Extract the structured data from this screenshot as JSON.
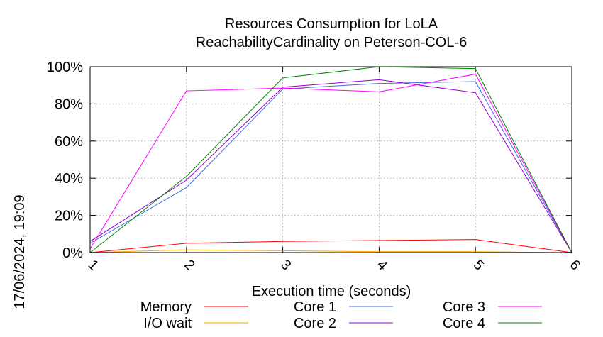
{
  "chart_data": {
    "type": "line",
    "title_lines": [
      "Resources Consumption for LoLA",
      "ReachabilityCardinality on Peterson-COL-6"
    ],
    "xlabel": "Execution time (seconds)",
    "ylabel": "",
    "side_label": "17/06/2024, 19:09",
    "x_ticks": [
      "1",
      "2",
      "3",
      "4",
      "5",
      "6"
    ],
    "y_ticks": [
      "0%",
      "20%",
      "40%",
      "60%",
      "80%",
      "100%"
    ],
    "xlim": [
      1,
      6
    ],
    "ylim": [
      0,
      100
    ],
    "grid": true,
    "legend_position": "bottom",
    "x": [
      1,
      2,
      3,
      4,
      5,
      6
    ],
    "series": [
      {
        "name": "Memory",
        "color": "#ff0000",
        "values": [
          0,
          5,
          6,
          6.5,
          7,
          0
        ]
      },
      {
        "name": "I/O wait",
        "color": "#ffa500",
        "values": [
          0,
          1.5,
          1,
          0.5,
          0.5,
          0
        ]
      },
      {
        "name": "Core 1",
        "color": "#4169e1",
        "values": [
          5,
          35,
          88,
          91,
          92,
          0
        ]
      },
      {
        "name": "Core 2",
        "color": "#9400d3",
        "values": [
          6,
          39,
          89,
          93,
          86,
          0
        ]
      },
      {
        "name": "Core 3",
        "color": "#ff00ff",
        "values": [
          2,
          87,
          88.5,
          86.5,
          96,
          0
        ]
      },
      {
        "name": "Core 4",
        "color": "#008000",
        "values": [
          0,
          41,
          94,
          100,
          99,
          0
        ]
      }
    ]
  }
}
